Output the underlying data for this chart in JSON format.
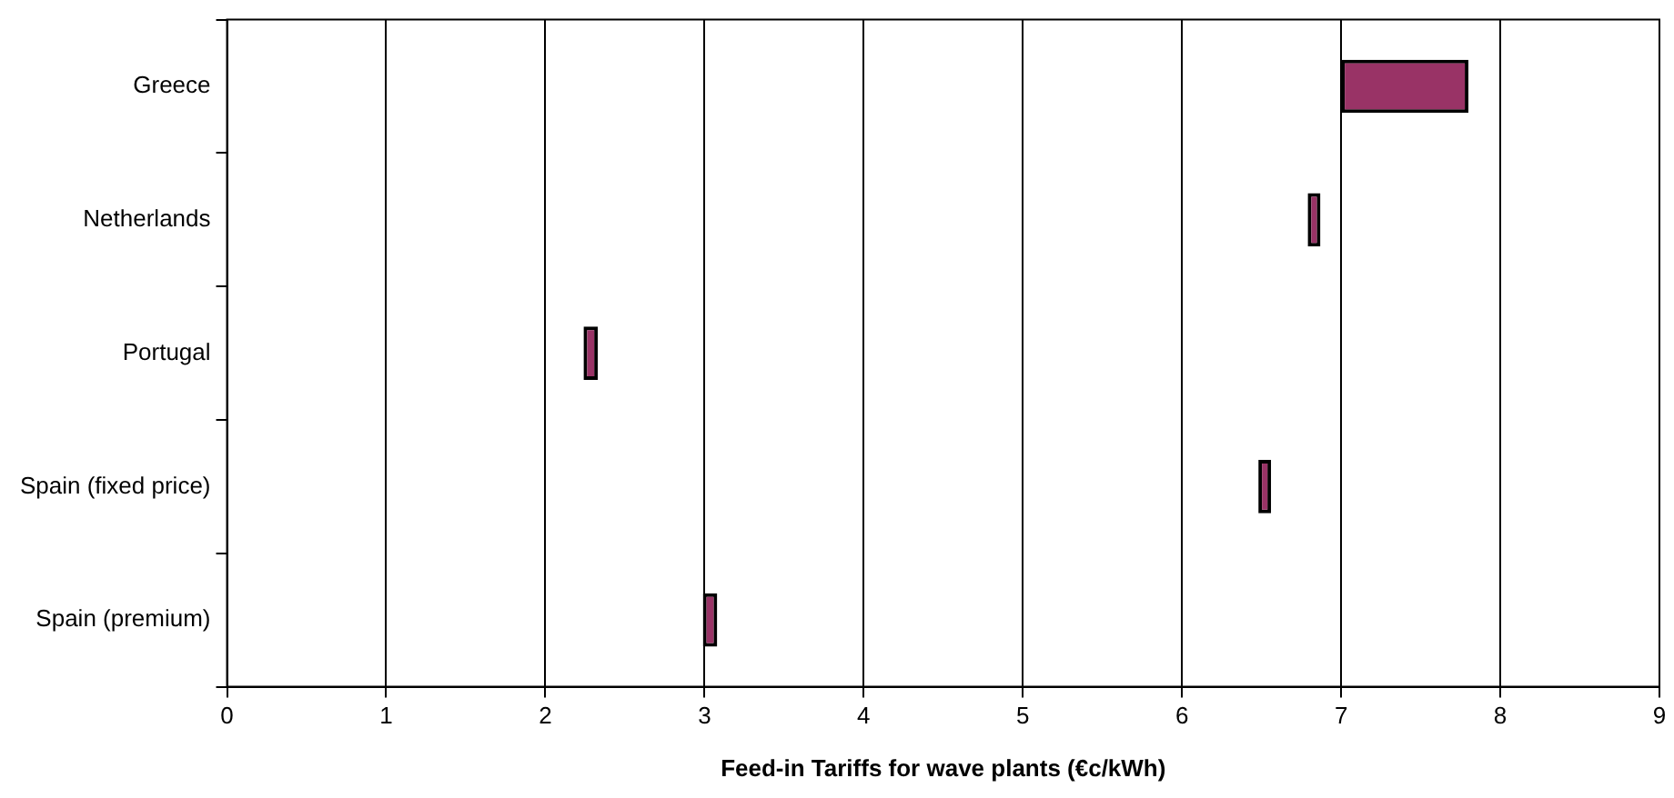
{
  "chart_data": {
    "type": "bar",
    "orientation": "horizontal",
    "xlabel": "Feed-in Tariffs for wave plants (€c/kWh)",
    "categories": [
      "Greece",
      "Netherlands",
      "Portugal",
      "Spain (fixed price)",
      "Spain (premium)"
    ],
    "base": [
      7,
      6.79,
      2.24,
      6.48,
      2.99
    ],
    "values": [
      0.8,
      0.08,
      0.09,
      0.08,
      0.09
    ],
    "color": "#993366",
    "xlim": [
      0,
      9
    ],
    "xticks": [
      0,
      1,
      2,
      3,
      4,
      5,
      6,
      7,
      8,
      9
    ],
    "grid": "x",
    "legend": false
  }
}
